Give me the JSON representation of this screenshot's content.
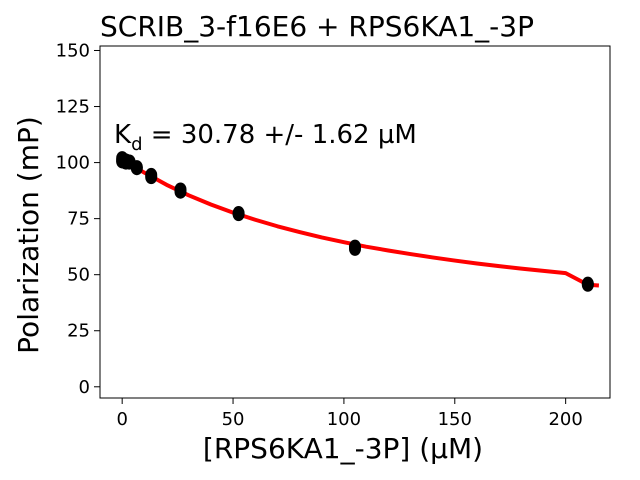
{
  "chart_data": {
    "type": "scatter",
    "title": "SCRIB_3-f16E6 + RPS6KA1_-3P",
    "xlabel": "[RPS6KA1_-3P] (µM)",
    "ylabel": "Polarization (mP)",
    "xlim": [
      -10,
      220
    ],
    "ylim": [
      -5,
      152
    ],
    "xticks": [
      0,
      50,
      100,
      150,
      200
    ],
    "yticks": [
      0,
      25,
      50,
      75,
      100,
      125,
      150
    ],
    "grid": false,
    "annotation": {
      "prefix": "K",
      "subscript": "d",
      "text": " = 30.78 +/- 1.62 µM"
    },
    "series": [
      {
        "kind": "points",
        "color": "#000000",
        "x": [
          0,
          0,
          0,
          1.6,
          1.6,
          3.3,
          3.3,
          6.6,
          6.6,
          13.1,
          13.1,
          26.3,
          26.3,
          52.5,
          52.5,
          105,
          105,
          210,
          210
        ],
        "y": [
          102,
          101,
          100.5,
          101,
          100,
          100.5,
          100,
          98,
          97.5,
          94.5,
          93.5,
          88,
          87,
          77.5,
          77,
          62.5,
          61.5,
          46,
          45.5
        ]
      },
      {
        "kind": "fit",
        "color": "#ff0000",
        "x": [
          0,
          10,
          20,
          30,
          40,
          50,
          60,
          70,
          80,
          90,
          100,
          110,
          120,
          130,
          140,
          150,
          160,
          170,
          180,
          190,
          200,
          210,
          215
        ],
        "y": [
          101.5,
          95.5,
          90.1,
          85.4,
          81.3,
          77.7,
          74.5,
          71.6,
          69.0,
          66.6,
          64.5,
          62.5,
          60.8,
          59.2,
          57.7,
          56.3,
          55.0,
          53.8,
          52.7,
          51.7,
          50.7,
          45.5,
          45.2
        ]
      }
    ]
  }
}
